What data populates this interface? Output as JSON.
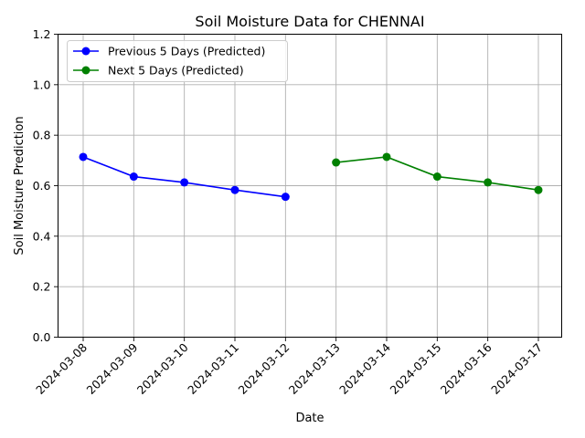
{
  "chart_data": {
    "type": "line",
    "title": "Soil Moisture Data for CHENNAI",
    "xlabel": "Date",
    "ylabel": "Soil Moisture Prediction",
    "x": [
      "2024-03-08",
      "2024-03-09",
      "2024-03-10",
      "2024-03-11",
      "2024-03-12",
      "2024-03-13",
      "2024-03-14",
      "2024-03-15",
      "2024-03-16",
      "2024-03-17"
    ],
    "ylim": [
      0.0,
      1.2
    ],
    "yticks": [
      "0.0",
      "0.2",
      "0.4",
      "0.6",
      "0.8",
      "1.0",
      "1.2"
    ],
    "grid": true,
    "legend_position": "top-left",
    "series": [
      {
        "name": "Previous 5 Days (Predicted)",
        "color": "#0000ff",
        "x": [
          "2024-03-08",
          "2024-03-09",
          "2024-03-10",
          "2024-03-11",
          "2024-03-12"
        ],
        "values": [
          0.714,
          0.636,
          0.613,
          0.583,
          0.556
        ]
      },
      {
        "name": "Next 5 Days (Predicted)",
        "color": "#008000",
        "x": [
          "2024-03-13",
          "2024-03-14",
          "2024-03-15",
          "2024-03-16",
          "2024-03-17"
        ],
        "values": [
          0.692,
          0.714,
          0.636,
          0.613,
          0.583
        ]
      }
    ]
  }
}
